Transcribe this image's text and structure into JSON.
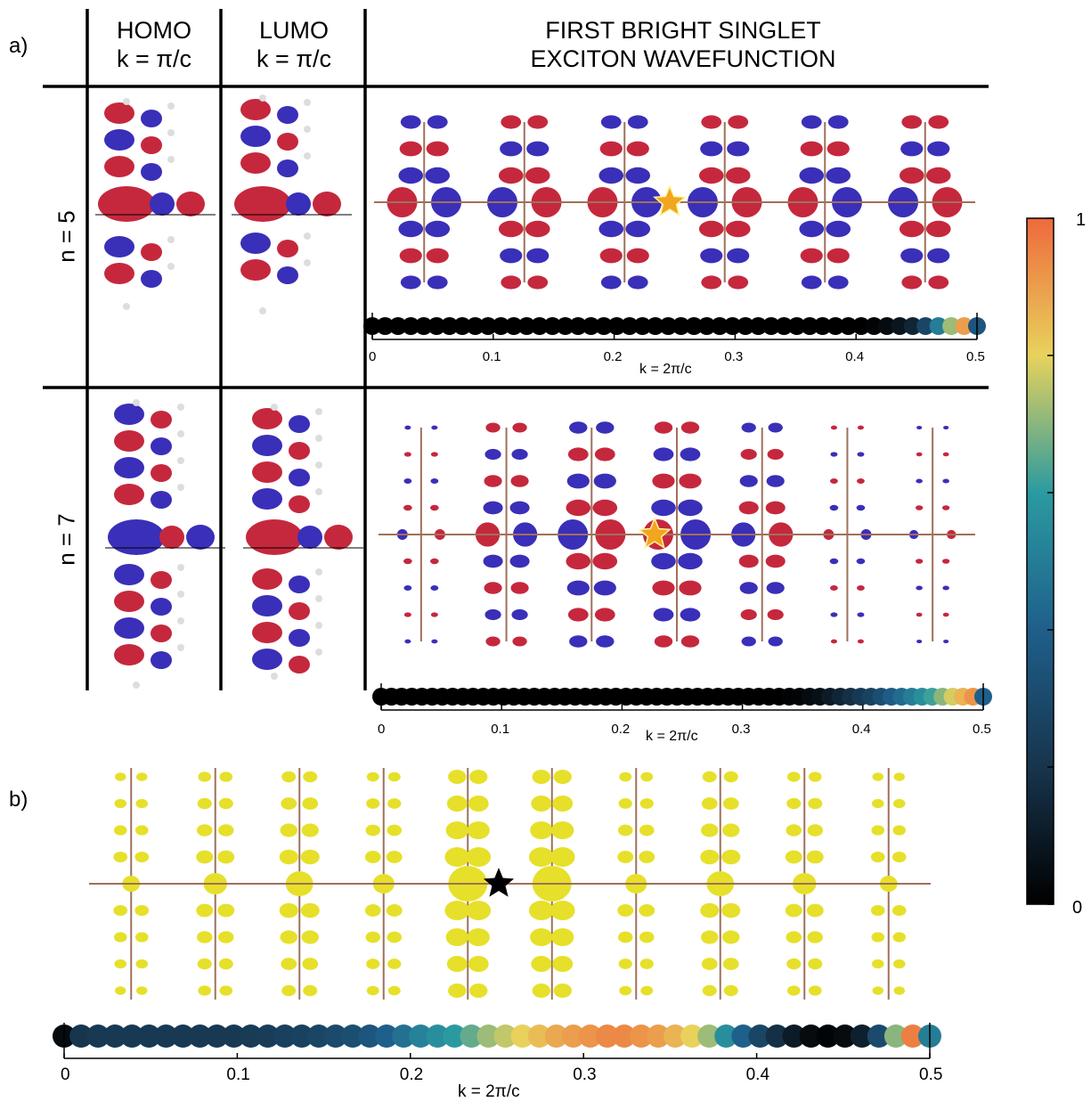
{
  "panel_labels": {
    "a": "a)",
    "b": "b)"
  },
  "headers": {
    "homo_line1": "HOMO",
    "homo_line2": "k = π/c",
    "lumo_line1": "LUMO",
    "lumo_line2": "k = π/c",
    "exciton_line1": "FIRST BRIGHT SINGLET",
    "exciton_line2": "EXCITON WAVEFUNCTION"
  },
  "rows": {
    "n5": "n = 5",
    "n7": "n = 7"
  },
  "colorbar": {
    "max_label": "1",
    "min_label": "0",
    "ticks": [
      0,
      0.2,
      0.4,
      0.6,
      0.8,
      1.0
    ],
    "stops": [
      "#000000",
      "#17354d",
      "#1f5f8b",
      "#2b9aa0",
      "#e8d25c",
      "#ee6a3d"
    ]
  },
  "colors": {
    "red_lobe": "#c5283d",
    "blue_lobe": "#3a2fb8",
    "yellow_lobe": "#e6e02a",
    "star_orange": "#f2a51f"
  },
  "chart_data": [
    {
      "type": "scatter",
      "panel": "a) n = 5",
      "xlabel": "k = 2π/c",
      "ticks": [
        "0",
        "0.1",
        "0.2",
        "0.3",
        "0.4",
        "0.5"
      ],
      "xlim": [
        0,
        0.5
      ],
      "values": [
        0,
        0,
        0,
        0,
        0,
        0,
        0,
        0,
        0,
        0,
        0,
        0,
        0,
        0,
        0,
        0,
        0,
        0,
        0,
        0,
        0,
        0,
        0,
        0,
        0,
        0,
        0,
        0,
        0,
        0,
        0,
        0,
        0,
        0,
        0,
        0,
        0,
        0,
        0,
        0.02,
        0.04,
        0.08,
        0.14,
        0.28,
        0.5,
        0.72,
        0.9,
        0.35
      ]
    },
    {
      "type": "scatter",
      "panel": "a) n = 7",
      "xlabel": "k = 2π/c",
      "ticks": [
        "0",
        "0.1",
        "0.2",
        "0.3",
        "0.4",
        "0.5"
      ],
      "xlim": [
        0,
        0.5
      ],
      "values": [
        0,
        0,
        0,
        0,
        0,
        0,
        0,
        0,
        0,
        0,
        0,
        0,
        0,
        0,
        0,
        0,
        0,
        0,
        0,
        0,
        0,
        0,
        0,
        0,
        0,
        0,
        0,
        0,
        0,
        0,
        0,
        0,
        0,
        0,
        0,
        0,
        0,
        0,
        0,
        0,
        0.01,
        0.02,
        0.04,
        0.06,
        0.1,
        0.14,
        0.18,
        0.22,
        0.26,
        0.32,
        0.38,
        0.44,
        0.5,
        0.56,
        0.62,
        0.7,
        0.78,
        0.86,
        0.92,
        0.4
      ]
    },
    {
      "type": "scatter",
      "panel": "b)",
      "xlabel": "k = 2π/c",
      "ticks": [
        "0",
        "0.1",
        "0.2",
        "0.3",
        "0.4",
        "0.5"
      ],
      "xlim": [
        0,
        0.5
      ],
      "values": [
        0.04,
        0.2,
        0.22,
        0.22,
        0.22,
        0.22,
        0.22,
        0.22,
        0.22,
        0.22,
        0.22,
        0.23,
        0.24,
        0.25,
        0.26,
        0.28,
        0.3,
        0.32,
        0.35,
        0.4,
        0.46,
        0.52,
        0.56,
        0.6,
        0.66,
        0.72,
        0.76,
        0.8,
        0.84,
        0.88,
        0.9,
        0.92,
        0.94,
        0.94,
        0.92,
        0.9,
        0.86,
        0.8,
        0.72,
        0.56,
        0.4,
        0.28,
        0.18,
        0.1,
        0.04,
        0.02,
        0.04,
        0.12,
        0.3,
        0.7,
        0.96,
        0.5
      ]
    }
  ]
}
